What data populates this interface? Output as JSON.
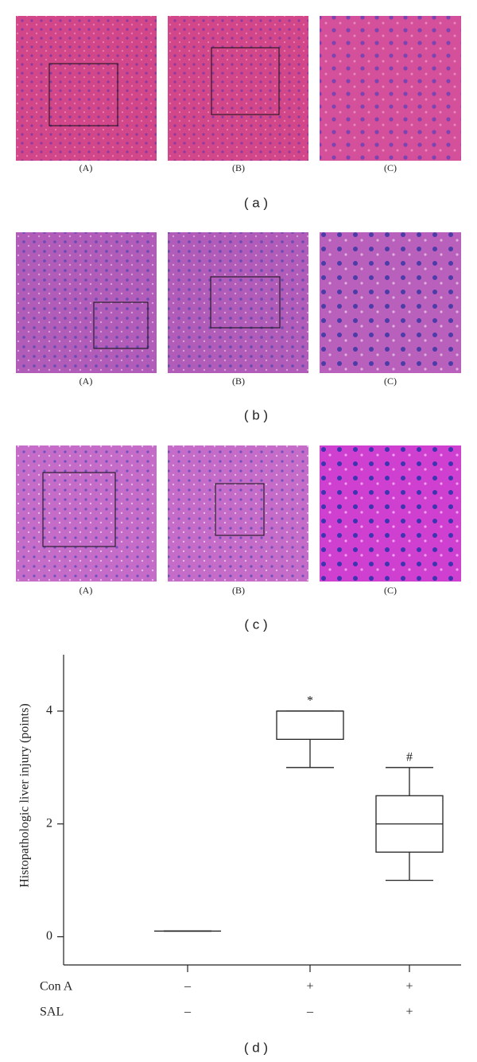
{
  "panels": [
    {
      "images": [
        "(A)",
        "(B)",
        "(C)"
      ],
      "label": "( a )"
    },
    {
      "images": [
        "(A)",
        "(B)",
        "(C)"
      ],
      "label": "( b )"
    },
    {
      "images": [
        "(A)",
        "(B)",
        "(C)"
      ],
      "label": "( c )"
    }
  ],
  "chart_data": {
    "type": "box",
    "title": "( d )",
    "y_label": "Histopathologic liver injury (points)",
    "ylim": [
      -0.5,
      5
    ],
    "yticks": [
      0,
      2,
      4
    ],
    "conditions": [
      {
        "name": "Con A",
        "values": [
          "–",
          "+",
          "+"
        ]
      },
      {
        "name": "SAL",
        "values": [
          "–",
          "–",
          "+"
        ]
      }
    ],
    "boxes": [
      {
        "min": 0.1,
        "q1": 0.1,
        "median": 0.1,
        "q3": 0.1,
        "max": 0.1
      },
      {
        "min": 3,
        "q1": 3.5,
        "median": 4,
        "q3": 4,
        "max": 4,
        "annotation": "*"
      },
      {
        "min": 1,
        "q1": 1.5,
        "median": 2,
        "q3": 2.5,
        "max": 3,
        "annotation": "#"
      }
    ],
    "color": "#222222"
  }
}
